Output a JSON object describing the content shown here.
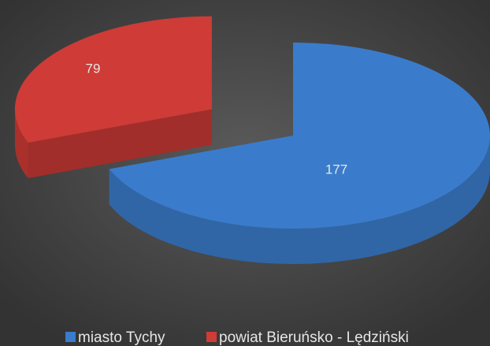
{
  "chart_data": {
    "type": "pie",
    "categories": [
      "miasto Tychy",
      "powiat Bieruńsko - Lędziński"
    ],
    "values": [
      177,
      79
    ],
    "colors": [
      "#3a7ccb",
      "#cf3b36"
    ],
    "legend": "bottom"
  }
}
